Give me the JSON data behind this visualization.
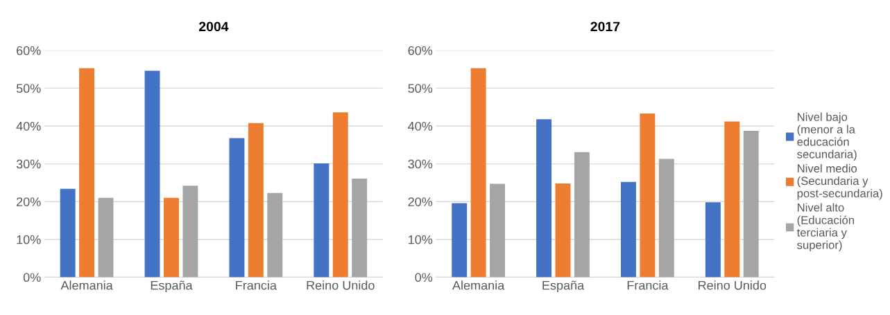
{
  "chart_data": [
    {
      "type": "bar",
      "title": "2004",
      "categories": [
        "Alemania",
        "España",
        "Francia",
        "Reino Unido"
      ],
      "series": [
        {
          "color": "#4472c4",
          "values": [
            23.4,
            54.6,
            36.8,
            30.1
          ]
        },
        {
          "color": "#ed7d31",
          "values": [
            55.3,
            21.0,
            40.8,
            43.6
          ]
        },
        {
          "color": "#a5a5a5",
          "values": [
            21.0,
            24.2,
            22.3,
            26.1
          ]
        }
      ],
      "ylim": [
        0,
        60
      ],
      "yticks": [
        {
          "value": 0,
          "label": "0%"
        },
        {
          "value": 10,
          "label": "10%"
        },
        {
          "value": 20,
          "label": "20%"
        },
        {
          "value": 30,
          "label": "30%"
        },
        {
          "value": 40,
          "label": "40%"
        },
        {
          "value": 50,
          "label": "50%"
        },
        {
          "value": 60,
          "label": "60%"
        }
      ],
      "grid": "y"
    },
    {
      "type": "bar",
      "title": "2017",
      "categories": [
        "Alemania",
        "España",
        "Francia",
        "Reino Unido"
      ],
      "series": [
        {
          "name": "Nivel bajo (menor a la educación secundaria)",
          "color": "#4472c4",
          "values": [
            19.6,
            41.8,
            25.2,
            19.8
          ]
        },
        {
          "name": "Nivel medio (Secundaria y post-secundaria)",
          "color": "#ed7d31",
          "values": [
            55.3,
            24.8,
            43.3,
            41.2
          ]
        },
        {
          "name": "Nivel alto (Educación terciaria y superior)",
          "color": "#a5a5a5",
          "values": [
            24.7,
            33.1,
            31.3,
            38.7
          ]
        }
      ],
      "ylim": [
        0,
        60
      ],
      "yticks": [
        {
          "value": 0,
          "label": "0%"
        },
        {
          "value": 10,
          "label": "10%"
        },
        {
          "value": 20,
          "label": "20%"
        },
        {
          "value": 30,
          "label": "30%"
        },
        {
          "value": 40,
          "label": "40%"
        },
        {
          "value": 50,
          "label": "50%"
        },
        {
          "value": 60,
          "label": "60%"
        }
      ],
      "grid": "y",
      "legend": "right"
    }
  ]
}
